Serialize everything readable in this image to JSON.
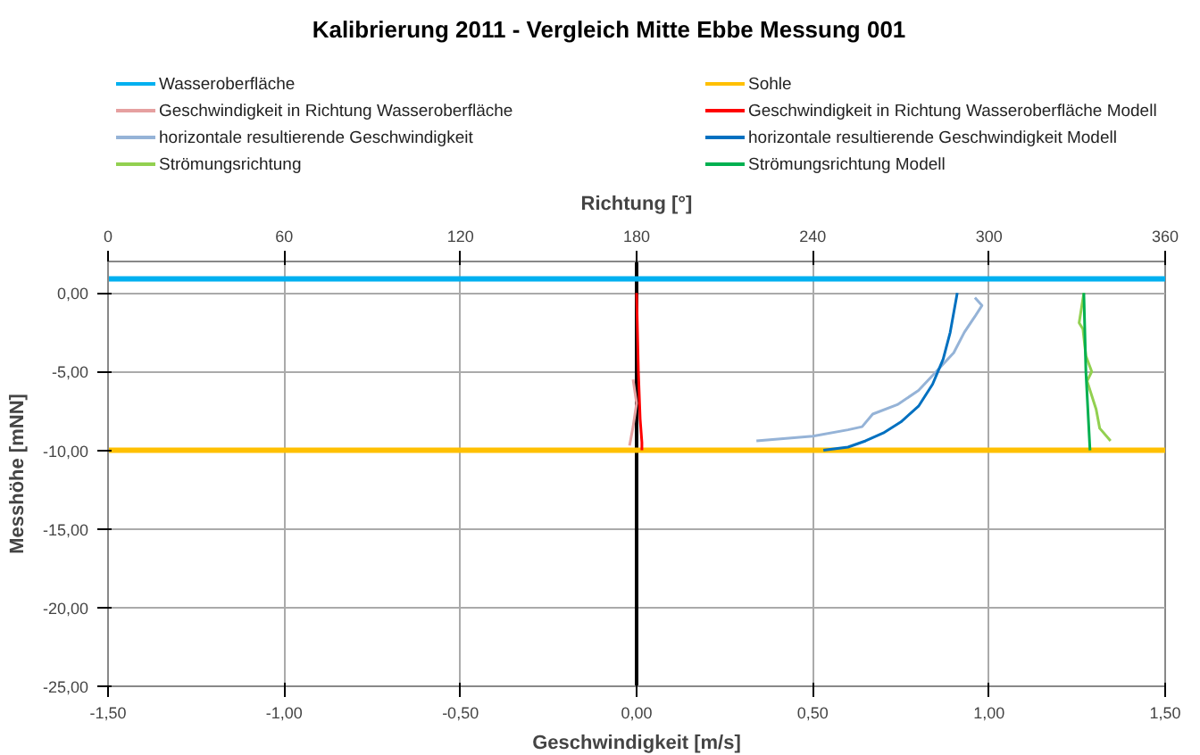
{
  "chart_data": {
    "type": "line",
    "title": "Kalibrierung 2011 - Vergleich Mitte Ebbe Messung 001",
    "xlabel": "Geschwindigkeit [m/s]",
    "ylabel": "Messhöhe [mNN]",
    "x2label": "Richtung [°]",
    "xlim": [
      -1.5,
      1.5
    ],
    "xticks": [
      {
        "value": -1.5,
        "label": "-1,50"
      },
      {
        "value": -1.0,
        "label": "-1,00"
      },
      {
        "value": -0.5,
        "label": "-0,50"
      },
      {
        "value": 0,
        "label": "0,00"
      },
      {
        "value": 0.5,
        "label": "0,50"
      },
      {
        "value": 1.0,
        "label": "1,00"
      },
      {
        "value": 1.5,
        "label": "1,50"
      }
    ],
    "ylim": [
      -25,
      2
    ],
    "yticks": [
      {
        "value": -25,
        "label": "-25,00"
      },
      {
        "value": -20,
        "label": "-20,00"
      },
      {
        "value": -15,
        "label": "-15,00"
      },
      {
        "value": -10,
        "label": "-10,00"
      },
      {
        "value": -5,
        "label": "-5,00"
      },
      {
        "value": 0,
        "label": "0,00"
      }
    ],
    "x2lim": [
      0,
      360
    ],
    "x2ticks": [
      0,
      60,
      120,
      180,
      240,
      300,
      360
    ],
    "grid": true,
    "legend": "top",
    "marker": "none",
    "line_style": "solid",
    "ref_lines": [
      {
        "axis": "x",
        "value": 0,
        "color": "#000000"
      }
    ],
    "series": [
      {
        "name": "Wasseroberfläche",
        "color": "#00b0f0",
        "x": [
          -1.5,
          1.5
        ],
        "values": [
          0.9,
          0.9
        ]
      },
      {
        "name": "Sohle",
        "color": "#ffc000",
        "x": [
          -1.5,
          1.5
        ],
        "values": [
          -10,
          -10
        ]
      },
      {
        "name": "Geschwindigkeit in Richtung Wasseroberfläche",
        "color": "#e6a0a0",
        "x": [
          -0.01,
          0.0,
          -0.01,
          -0.02
        ],
        "values": [
          -5.5,
          -7,
          -8.5,
          -9.7
        ]
      },
      {
        "name": "Geschwindigkeit in Richtung Wasseroberfläche Modell",
        "color": "#ff0000",
        "x": [
          0.0,
          0.005,
          0.01,
          0.015,
          0.015
        ],
        "values": [
          0,
          -5,
          -8,
          -9.5,
          -10
        ]
      },
      {
        "name": "horizontale resultierende Geschwindigkeit",
        "color": "#95b3d7",
        "x": [
          0.34,
          0.5,
          0.6,
          0.64,
          0.67,
          0.74,
          0.8,
          0.85,
          0.9,
          0.93,
          0.96,
          0.98,
          0.96
        ],
        "values": [
          -9.4,
          -9.1,
          -8.7,
          -8.5,
          -7.7,
          -7.1,
          -6.2,
          -5.0,
          -3.8,
          -2.5,
          -1.5,
          -0.8,
          -0.3
        ]
      },
      {
        "name": "horizontale resultierende Geschwindigkeit Modell",
        "color": "#0070c0",
        "x": [
          0.53,
          0.6,
          0.65,
          0.7,
          0.75,
          0.8,
          0.84,
          0.87,
          0.89,
          0.91
        ],
        "values": [
          -10,
          -9.8,
          -9.4,
          -8.9,
          -8.2,
          -7.2,
          -5.8,
          -4.2,
          -2.5,
          0
        ]
      },
      {
        "name": "Strömungsrichtung",
        "color": "#92d050",
        "axis": "x2",
        "x": [
          332.3,
          330.7,
          332,
          333,
          335,
          333.4,
          336.5,
          337.7,
          341.4
        ],
        "values": [
          0,
          -1.9,
          -2.3,
          -4,
          -5,
          -5.6,
          -7.4,
          -8.6,
          -9.4
        ]
      },
      {
        "name": "Strömungsrichtung Modell",
        "color": "#00b050",
        "axis": "x2",
        "x": [
          332.3,
          333,
          334.4
        ],
        "values": [
          0,
          -5,
          -10
        ]
      }
    ]
  }
}
